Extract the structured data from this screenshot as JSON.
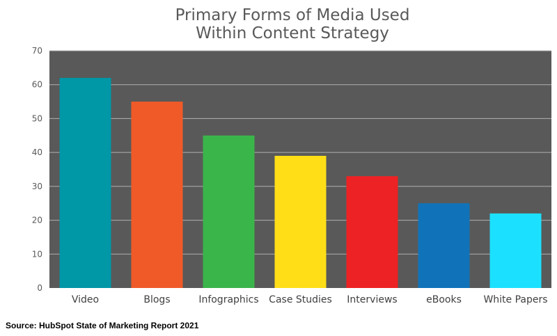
{
  "chart_data": {
    "type": "bar",
    "title": "Primary Forms of Media Used\nWithin Content Strategy",
    "title_lines": [
      "Primary Forms of Media Used",
      "Within Content Strategy"
    ],
    "categories": [
      "Video",
      "Blogs",
      "Infographics",
      "Case Studies",
      "Interviews",
      "eBooks",
      "White Papers"
    ],
    "values": [
      62,
      55,
      45,
      39,
      33,
      25,
      22
    ],
    "colors": [
      "#0097A7",
      "#F05A28",
      "#3AB54A",
      "#FFDE17",
      "#ED2224",
      "#1073BA",
      "#1CE0FF"
    ],
    "xlabel": "",
    "ylabel": "",
    "ylim": [
      0,
      70
    ],
    "yticks": [
      0,
      10,
      20,
      30,
      40,
      50,
      60,
      70
    ],
    "grid": true,
    "legend": "none",
    "plot_background": "#595959",
    "gridline_color": "#B0B0B0"
  },
  "source": {
    "text": "Source: HubSpot State of Marketing Report 2021"
  }
}
